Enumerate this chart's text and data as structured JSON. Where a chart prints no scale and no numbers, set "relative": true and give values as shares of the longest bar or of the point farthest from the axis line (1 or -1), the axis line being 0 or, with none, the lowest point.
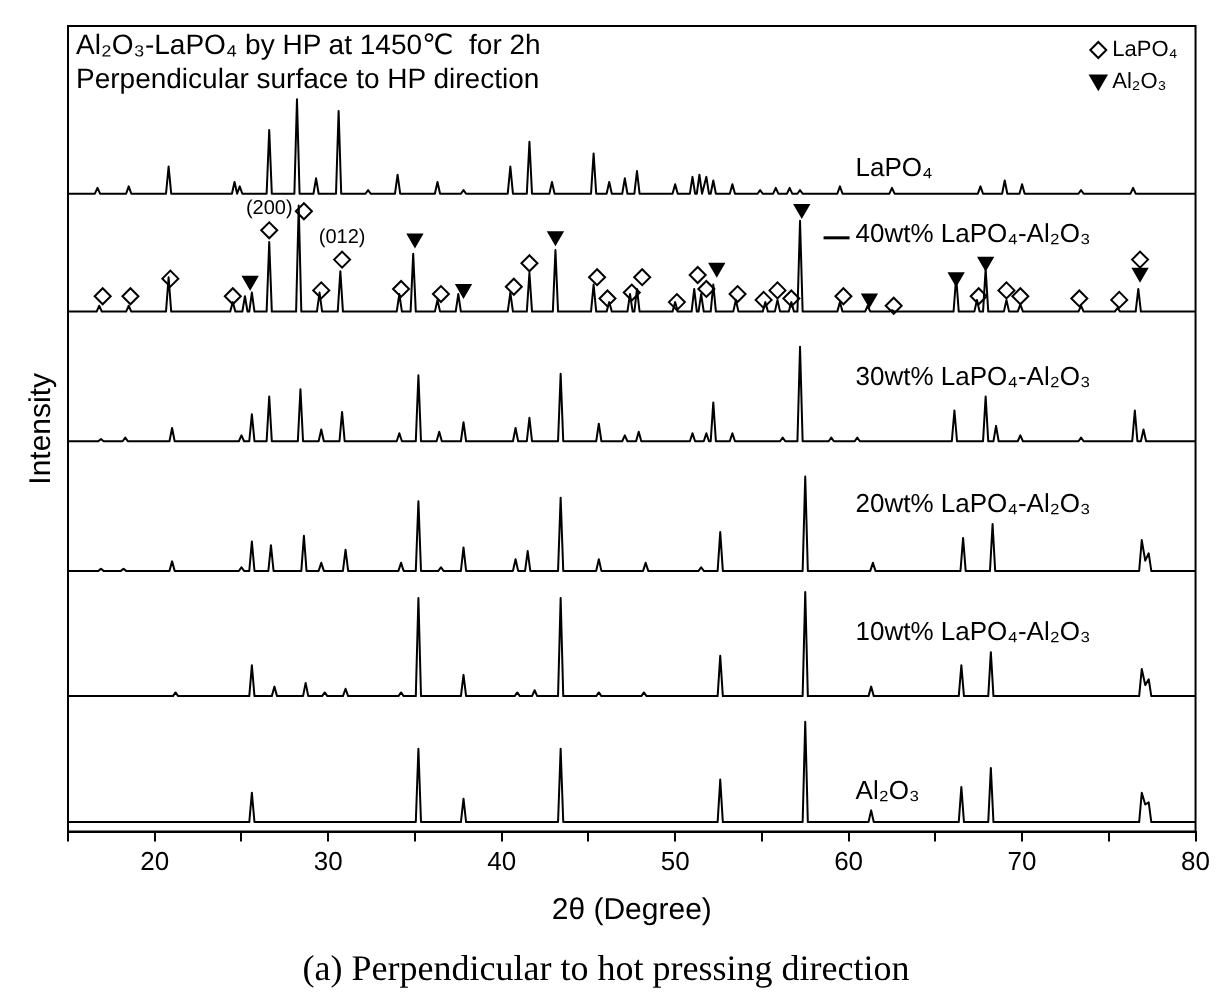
{
  "chart_data": {
    "type": "line",
    "title": "(a) Perpendicular to hot pressing direction",
    "xlabel": "2θ (Degree)",
    "ylabel": "Intensity",
    "relative": true,
    "xlim": [
      15,
      80
    ],
    "xticks": [
      {
        "value": 15,
        "label": null
      },
      20,
      {
        "value": 25,
        "label": null
      },
      30,
      {
        "value": 35,
        "label": null
      },
      40,
      {
        "value": 45,
        "label": null
      },
      50,
      {
        "value": 55,
        "label": null
      },
      60,
      {
        "value": 65,
        "label": null
      },
      70,
      {
        "value": 75,
        "label": null
      },
      80
    ],
    "grid": false,
    "legend": "top right",
    "marker": "none",
    "line_style": "solid",
    "annotations": [
      "Al₂O₃-LaPO₄ by HP at 1450℃  for 2h",
      "Perpendicular surface to HP direction",
      {
        "text": "(200)",
        "x": 26.6,
        "y": 0.821
      },
      {
        "text": "(012)",
        "x": 30.8,
        "y": 0.781
      }
    ],
    "series": [
      {
        "name": "Al₂O₃",
        "color": "#000000",
        "x": [
          15,
          25.45,
          25.6,
          25.75,
          35.05,
          35.2,
          35.35,
          37.65,
          37.8,
          37.95,
          43.25,
          43.4,
          43.55,
          52.45,
          52.6,
          52.75,
          57.35,
          57.5,
          57.65,
          61.15,
          61.3,
          61.45,
          66.35,
          66.5,
          66.65,
          68.05,
          68.2,
          68.35,
          76.75,
          76.9,
          77.1,
          77.3,
          77.45,
          80
        ],
        "values": [
          0.013,
          0.013,
          0.053,
          0.013,
          0.013,
          0.113,
          0.013,
          0.013,
          0.045,
          0.013,
          0.013,
          0.113,
          0.013,
          0.013,
          0.071,
          0.013,
          0.013,
          0.15,
          0.013,
          0.013,
          0.029,
          0.013,
          0.013,
          0.061,
          0.013,
          0.013,
          0.087,
          0.013,
          0.013,
          0.053,
          0.037,
          0.04,
          0.013,
          0.013
        ]
      },
      {
        "name": "10wt% LaPO₄-Al₂O₃",
        "color": "#000000",
        "x": [
          15,
          21.05,
          21.2,
          21.35,
          25.45,
          25.6,
          25.75,
          26.75,
          26.9,
          27.05,
          28.55,
          28.7,
          28.85,
          29.65,
          29.8,
          29.95,
          30.85,
          31,
          31.15,
          34.05,
          34.2,
          34.35,
          35.05,
          35.2,
          35.35,
          37.65,
          37.8,
          37.95,
          40.75,
          40.9,
          41.05,
          41.75,
          41.9,
          42.05,
          43.25,
          43.4,
          43.55,
          45.45,
          45.6,
          45.75,
          48.05,
          48.2,
          48.35,
          52.45,
          52.6,
          52.75,
          57.35,
          57.5,
          57.65,
          61.15,
          61.3,
          61.45,
          66.35,
          66.5,
          66.65,
          68.05,
          68.2,
          68.35,
          76.75,
          76.9,
          77.1,
          77.3,
          77.45,
          80
        ],
        "values": [
          0.185,
          0.185,
          0.19,
          0.185,
          0.185,
          0.227,
          0.185,
          0.185,
          0.198,
          0.185,
          0.185,
          0.203,
          0.185,
          0.185,
          0.19,
          0.185,
          0.185,
          0.195,
          0.185,
          0.185,
          0.19,
          0.185,
          0.185,
          0.319,
          0.185,
          0.185,
          0.214,
          0.185,
          0.185,
          0.19,
          0.185,
          0.185,
          0.193,
          0.185,
          0.185,
          0.319,
          0.185,
          0.185,
          0.19,
          0.185,
          0.185,
          0.19,
          0.185,
          0.185,
          0.24,
          0.185,
          0.185,
          0.327,
          0.185,
          0.185,
          0.198,
          0.185,
          0.185,
          0.227,
          0.185,
          0.185,
          0.245,
          0.185,
          0.185,
          0.222,
          0.2,
          0.208,
          0.185,
          0.185
        ]
      },
      {
        "name": "20wt% LaPO₄-Al₂O₃",
        "color": "#000000",
        "x": [
          15,
          16.75,
          16.9,
          17.05,
          18.05,
          18.2,
          18.35,
          20.85,
          21,
          21.15,
          24.85,
          25,
          25.15,
          25.45,
          25.6,
          25.75,
          26.55,
          26.7,
          26.85,
          28.45,
          28.6,
          28.75,
          29.45,
          29.6,
          29.75,
          30.85,
          31,
          31.15,
          34.05,
          34.2,
          34.35,
          35.05,
          35.2,
          35.35,
          36.35,
          36.5,
          36.65,
          37.65,
          37.8,
          37.95,
          40.65,
          40.8,
          40.95,
          41.35,
          41.5,
          41.65,
          43.25,
          43.4,
          43.55,
          45.45,
          45.6,
          45.75,
          48.15,
          48.3,
          48.45,
          51.35,
          51.5,
          51.65,
          52.45,
          52.6,
          52.75,
          57.35,
          57.5,
          57.65,
          61.25,
          61.4,
          61.55,
          66.45,
          66.6,
          66.75,
          68.15,
          68.3,
          68.45,
          76.75,
          76.9,
          77.1,
          77.3,
          77.45,
          80
        ],
        "values": [
          0.356,
          0.356,
          0.359,
          0.356,
          0.356,
          0.359,
          0.356,
          0.356,
          0.369,
          0.356,
          0.356,
          0.361,
          0.356,
          0.356,
          0.396,
          0.356,
          0.356,
          0.391,
          0.356,
          0.356,
          0.404,
          0.356,
          0.356,
          0.367,
          0.356,
          0.356,
          0.385,
          0.356,
          0.356,
          0.367,
          0.356,
          0.356,
          0.451,
          0.356,
          0.356,
          0.361,
          0.356,
          0.356,
          0.388,
          0.356,
          0.356,
          0.372,
          0.356,
          0.356,
          0.383,
          0.356,
          0.356,
          0.456,
          0.356,
          0.356,
          0.372,
          0.356,
          0.356,
          0.367,
          0.356,
          0.356,
          0.361,
          0.356,
          0.356,
          0.409,
          0.356,
          0.356,
          0.485,
          0.356,
          0.356,
          0.367,
          0.356,
          0.356,
          0.401,
          0.356,
          0.356,
          0.42,
          0.356,
          0.356,
          0.398,
          0.37,
          0.38,
          0.356,
          0.356
        ]
      },
      {
        "name": "30wt% LaPO₄-Al₂O₃",
        "color": "#000000",
        "x": [
          15,
          16.75,
          16.9,
          17.05,
          18.15,
          18.3,
          18.45,
          20.85,
          21,
          21.15,
          24.85,
          25,
          25.15,
          25.45,
          25.6,
          25.75,
          26.45,
          26.6,
          26.75,
          28.25,
          28.4,
          28.55,
          29.45,
          29.6,
          29.75,
          30.65,
          30.8,
          30.95,
          33.95,
          34.1,
          34.25,
          35.05,
          35.2,
          35.35,
          36.25,
          36.4,
          36.55,
          37.65,
          37.8,
          37.95,
          40.65,
          40.8,
          40.95,
          41.45,
          41.6,
          41.75,
          43.25,
          43.4,
          43.55,
          45.45,
          45.6,
          45.75,
          46.95,
          47.1,
          47.25,
          47.75,
          47.9,
          48.05,
          50.85,
          51,
          51.15,
          51.65,
          51.8,
          51.95,
          52.05,
          52.2,
          52.35,
          53.15,
          53.3,
          53.45,
          56.05,
          56.2,
          56.35,
          57.05,
          57.2,
          57.35,
          58.85,
          59,
          59.15,
          60.35,
          60.5,
          60.65,
          65.95,
          66.1,
          66.25,
          67.75,
          67.9,
          68.05,
          68.35,
          68.5,
          68.65,
          69.75,
          69.9,
          70.05,
          73.25,
          73.4,
          73.55,
          76.35,
          76.5,
          76.65,
          76.85,
          77,
          77.15,
          80
        ],
        "values": [
          0.533,
          0.533,
          0.536,
          0.533,
          0.533,
          0.538,
          0.533,
          0.533,
          0.551,
          0.533,
          0.533,
          0.541,
          0.533,
          0.533,
          0.57,
          0.533,
          0.533,
          0.594,
          0.533,
          0.533,
          0.604,
          0.533,
          0.533,
          0.549,
          0.533,
          0.533,
          0.573,
          0.533,
          0.533,
          0.544,
          0.533,
          0.533,
          0.623,
          0.533,
          0.533,
          0.546,
          0.533,
          0.533,
          0.559,
          0.533,
          0.533,
          0.551,
          0.533,
          0.533,
          0.565,
          0.533,
          0.533,
          0.625,
          0.533,
          0.533,
          0.557,
          0.533,
          0.533,
          0.541,
          0.533,
          0.533,
          0.546,
          0.533,
          0.533,
          0.544,
          0.533,
          0.533,
          0.544,
          0.533,
          0.533,
          0.586,
          0.533,
          0.533,
          0.544,
          0.533,
          0.533,
          0.538,
          0.533,
          0.533,
          0.662,
          0.533,
          0.533,
          0.538,
          0.533,
          0.533,
          0.538,
          0.533,
          0.533,
          0.575,
          0.533,
          0.533,
          0.594,
          0.533,
          0.533,
          0.554,
          0.533,
          0.533,
          0.541,
          0.533,
          0.533,
          0.538,
          0.533,
          0.533,
          0.575,
          0.533,
          0.533,
          0.549,
          0.533,
          0.533
        ]
      },
      {
        "name": "40wt% LaPO₄-Al₂O₃",
        "color": "#000000",
        "x": [
          15,
          16.65,
          16.8,
          16.95,
          18.35,
          18.5,
          18.65,
          20.65,
          20.8,
          20.95,
          24.35,
          24.5,
          24.65,
          25.05,
          25.2,
          25.35,
          25.45,
          25.6,
          25.75,
          26.45,
          26.6,
          26.75,
          28.15,
          28.3,
          28.45,
          29.35,
          29.5,
          29.65,
          30.55,
          30.7,
          30.85,
          33.95,
          34.1,
          34.25,
          34.75,
          34.9,
          35.05,
          36.15,
          36.3,
          36.45,
          37.35,
          37.5,
          37.65,
          40.35,
          40.5,
          40.65,
          41.45,
          41.6,
          41.75,
          42.95,
          43.1,
          43.25,
          45.15,
          45.3,
          45.45,
          46.05,
          46.2,
          46.35,
          47.25,
          47.4,
          47.55,
          47.65,
          47.8,
          47.95,
          49.85,
          50,
          50.15,
          50.95,
          51.1,
          51.25,
          51.35,
          51.5,
          51.65,
          52.05,
          52.2,
          52.35,
          53.35,
          53.5,
          53.65,
          55.05,
          55.2,
          55.35,
          55.75,
          55.9,
          56.05,
          56.55,
          56.7,
          56.85,
          57.05,
          57.2,
          57.35,
          59.35,
          59.5,
          59.65,
          60.95,
          61.1,
          61.25,
          62.35,
          62.5,
          62.65,
          66.05,
          66.2,
          66.35,
          67.25,
          67.4,
          67.55,
          67.75,
          67.9,
          68.05,
          68.95,
          69.1,
          69.25,
          69.75,
          69.9,
          70.05,
          73.25,
          73.4,
          73.55,
          75.35,
          75.5,
          75.65,
          76.55,
          76.7,
          76.85,
          80
        ],
        "values": [
          0.71,
          0.71,
          0.718,
          0.71,
          0.71,
          0.718,
          0.71,
          0.71,
          0.757,
          0.71,
          0.71,
          0.723,
          0.71,
          0.71,
          0.731,
          0.71,
          0.71,
          0.736,
          0.71,
          0.71,
          0.805,
          0.71,
          0.71,
          0.855,
          0.71,
          0.71,
          0.736,
          0.71,
          0.71,
          0.765,
          0.71,
          0.71,
          0.734,
          0.71,
          0.71,
          0.789,
          0.71,
          0.71,
          0.726,
          0.71,
          0.71,
          0.734,
          0.71,
          0.71,
          0.736,
          0.71,
          0.71,
          0.763,
          0.71,
          0.71,
          0.794,
          0.71,
          0.71,
          0.747,
          0.71,
          0.71,
          0.723,
          0.71,
          0.71,
          0.734,
          0.71,
          0.71,
          0.741,
          0.71,
          0.71,
          0.723,
          0.71,
          0.71,
          0.741,
          0.71,
          0.71,
          0.734,
          0.71,
          0.71,
          0.747,
          0.71,
          0.71,
          0.726,
          0.71,
          0.71,
          0.723,
          0.71,
          0.71,
          0.726,
          0.71,
          0.71,
          0.723,
          0.71,
          0.71,
          0.834,
          0.71,
          0.71,
          0.723,
          0.71,
          0.71,
          0.718,
          0.71,
          0.71,
          0.712,
          0.71,
          0.71,
          0.757,
          0.71,
          0.71,
          0.726,
          0.71,
          0.71,
          0.768,
          0.71,
          0.71,
          0.726,
          0.71,
          0.71,
          0.72,
          0.71,
          0.71,
          0.718,
          0.71,
          0.71,
          0.715,
          0.71,
          0.71,
          0.741,
          0.71,
          0.71
        ]
      },
      {
        "name": "LaPO₄",
        "color": "#000000",
        "x": [
          15,
          16.55,
          16.7,
          16.85,
          18.35,
          18.5,
          18.65,
          20.65,
          20.8,
          20.95,
          24.45,
          24.6,
          24.75,
          24.75,
          24.9,
          25.05,
          26.45,
          26.6,
          26.75,
          28.05,
          28.2,
          28.35,
          29.15,
          29.3,
          29.45,
          30.45,
          30.6,
          30.75,
          32.15,
          32.3,
          32.45,
          33.85,
          34,
          34.15,
          36.15,
          36.3,
          36.45,
          37.65,
          37.8,
          37.95,
          40.35,
          40.5,
          40.65,
          41.45,
          41.6,
          41.75,
          42.75,
          42.9,
          43.05,
          45.15,
          45.3,
          45.45,
          46.05,
          46.2,
          46.35,
          46.95,
          47.1,
          47.25,
          47.65,
          47.8,
          47.95,
          49.85,
          50,
          50.15,
          50.85,
          51,
          51.15,
          51.25,
          51.4,
          51.55,
          51.65,
          51.8,
          51.95,
          52.05,
          52.2,
          52.35,
          53.15,
          53.3,
          53.45,
          54.75,
          54.9,
          55.05,
          55.65,
          55.8,
          55.95,
          56.45,
          56.6,
          56.75,
          57.05,
          57.2,
          57.35,
          59.35,
          59.5,
          59.65,
          62.35,
          62.5,
          62.65,
          67.45,
          67.6,
          67.75,
          68.85,
          69,
          69.15,
          69.85,
          70,
          70.15,
          73.25,
          73.4,
          73.55,
          76.25,
          76.4,
          76.55,
          80
        ],
        "values": [
          0.871,
          0.871,
          0.879,
          0.871,
          0.871,
          0.881,
          0.871,
          0.871,
          0.908,
          0.871,
          0.871,
          0.887,
          0.871,
          0.871,
          0.881,
          0.871,
          0.871,
          0.958,
          0.871,
          0.871,
          1,
          0.871,
          0.871,
          0.892,
          0.871,
          0.871,
          0.984,
          0.871,
          0.871,
          0.876,
          0.871,
          0.871,
          0.897,
          0.871,
          0.871,
          0.887,
          0.871,
          0.871,
          0.876,
          0.871,
          0.871,
          0.908,
          0.871,
          0.871,
          0.942,
          0.871,
          0.871,
          0.887,
          0.871,
          0.871,
          0.926,
          0.871,
          0.871,
          0.887,
          0.871,
          0.871,
          0.892,
          0.871,
          0.871,
          0.902,
          0.871,
          0.871,
          0.884,
          0.871,
          0.871,
          0.894,
          0.871,
          0.871,
          0.897,
          0.871,
          0.871,
          0.894,
          0.871,
          0.871,
          0.889,
          0.871,
          0.871,
          0.884,
          0.871,
          0.871,
          0.876,
          0.871,
          0.871,
          0.879,
          0.871,
          0.871,
          0.879,
          0.871,
          0.871,
          0.876,
          0.871,
          0.871,
          0.881,
          0.871,
          0.871,
          0.879,
          0.871,
          0.871,
          0.881,
          0.871,
          0.871,
          0.889,
          0.871,
          0.871,
          0.884,
          0.871,
          0.871,
          0.876,
          0.871,
          0.871,
          0.879,
          0.871,
          0.871
        ]
      },
      {
        "name": "LaPO₄",
        "type": "scatter",
        "marker": "diamond",
        "color": "#000000",
        "x": [
          17,
          18.6,
          20.9,
          24.5,
          26.6,
          28.6,
          29.6,
          30.8,
          34.2,
          36.5,
          40.7,
          41.6,
          45.5,
          46.1,
          47.5,
          48.1,
          50.1,
          51.3,
          51.8,
          53.6,
          55.1,
          55.9,
          56.7,
          59.7,
          62.6,
          67.5,
          69.1,
          69.9,
          73.3,
          75.6,
          76.8
        ],
        "values": [
          0.731,
          0.731,
          0.755,
          0.731,
          0.821,
          0.847,
          0.739,
          0.781,
          0.741,
          0.734,
          0.744,
          0.776,
          0.757,
          0.728,
          0.736,
          0.757,
          0.723,
          0.76,
          0.741,
          0.734,
          0.726,
          0.739,
          0.728,
          0.731,
          0.718,
          0.731,
          0.739,
          0.731,
          0.728,
          0.726,
          0.781
        ]
      },
      {
        "name": "Al₂O₃",
        "type": "scatter",
        "marker": "triangle",
        "color": "#000000",
        "x": [
          25.5,
          35,
          37.8,
          43.1,
          52.4,
          57.3,
          61.2,
          66.2,
          67.9,
          76.8
        ],
        "values": [
          0.752,
          0.81,
          0.741,
          0.813,
          0.77,
          0.85,
          0.728,
          0.757,
          0.778,
          0.763
        ]
      }
    ]
  }
}
